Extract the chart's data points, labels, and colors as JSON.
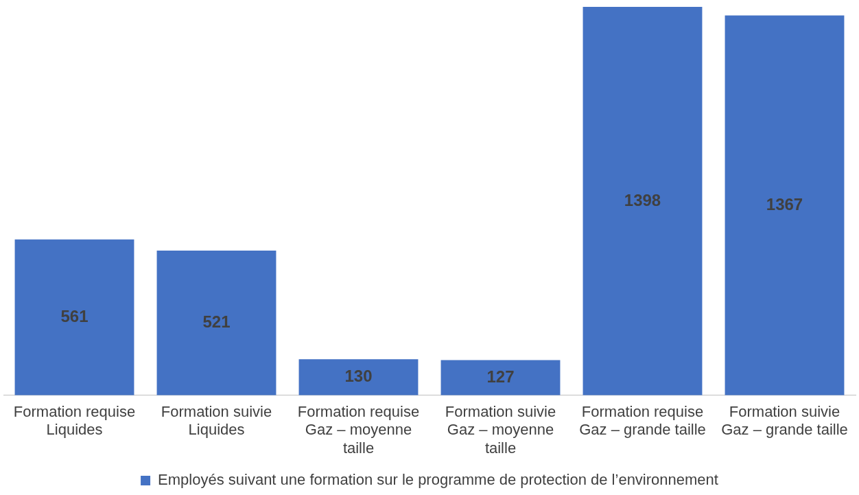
{
  "chart_data": {
    "type": "bar",
    "categories": [
      "Formation requise\nLiquides",
      "Formation suivie\nLiquides",
      "Formation requise\nGaz – moyenne taille",
      "Formation suivie\nGaz – moyenne taille",
      "Formation requise\nGaz – grande taille",
      "Formation suivie\nGaz – grande taille"
    ],
    "series": [
      {
        "name": "Employés suivant une formation sur le programme de protection de l’environnement",
        "color": "#4472c4",
        "values": [
          561,
          521,
          130,
          127,
          1398,
          1367
        ]
      }
    ],
    "data_labels": true,
    "grid": false,
    "legend": "bottom"
  }
}
